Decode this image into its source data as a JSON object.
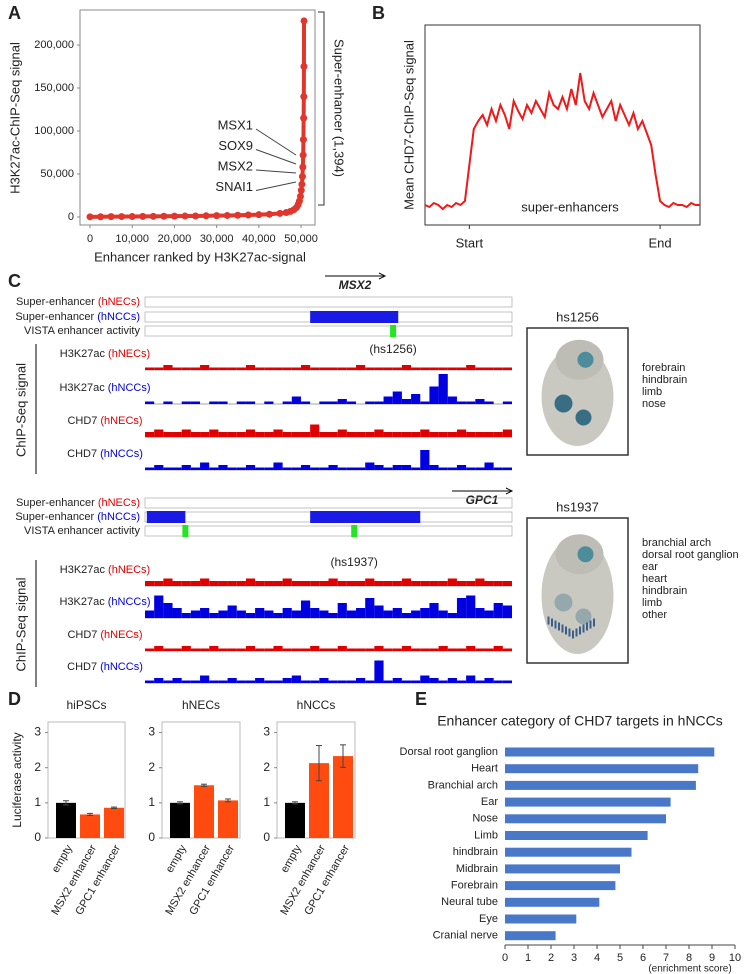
{
  "chart_data": [
    {
      "type": "line",
      "panel": "A",
      "markers": true,
      "color": "#e0362c",
      "xlabel": "Enhancer ranked by H3K27ac-signal",
      "ylabel": "H3K27ac-ChIP-Seq signal",
      "x": [
        0,
        2500,
        5000,
        7500,
        10000,
        12500,
        15000,
        17500,
        20000,
        22500,
        25000,
        27500,
        30000,
        32500,
        35000,
        37500,
        40000,
        42500,
        45000,
        46500,
        47500,
        48300,
        48900,
        49300,
        49600,
        49850,
        50050,
        50200,
        50320,
        50420,
        50500,
        50560,
        50610,
        50650,
        50680,
        50700
      ],
      "values": [
        200,
        300,
        400,
        500,
        600,
        700,
        800,
        900,
        1000,
        1100,
        1200,
        1400,
        1600,
        1800,
        2000,
        2300,
        2700,
        3200,
        4200,
        5200,
        6500,
        8500,
        11000,
        14500,
        18500,
        24000,
        31000,
        38000,
        47000,
        58000,
        72000,
        90000,
        115000,
        140000,
        175000,
        228000
      ],
      "xlim": [
        -2370,
        53300
      ],
      "xticks": [
        0,
        {
          "value": 10000,
          "label": "10,000"
        },
        {
          "value": 20000,
          "label": "20,000"
        },
        {
          "value": 30000,
          "label": "30,000"
        },
        {
          "value": 40000,
          "label": "40,000"
        },
        {
          "value": 50000,
          "label": "50,000"
        }
      ],
      "ylim": [
        -9300,
        240700
      ],
      "yticks": [
        0,
        {
          "value": 50000,
          "label": "50,000"
        },
        {
          "value": 100000,
          "label": "100,000"
        },
        {
          "value": 150000,
          "label": "150,000"
        },
        {
          "value": 200000,
          "label": "200,000"
        }
      ],
      "labels": [
        "MSX1",
        "SOX9",
        "MSX2",
        "SNAI1"
      ],
      "bracket_label": "Super-enhancer (1,394)"
    },
    {
      "type": "line",
      "panel": "B",
      "markers": false,
      "color": "#f01818",
      "ylabel": "Mean CHD7-ChIP-Seq signal",
      "annotation": "super-enhancers",
      "values": [
        10,
        9,
        11,
        10,
        8,
        10,
        9,
        11,
        10,
        12,
        30,
        48,
        52,
        55,
        50,
        58,
        52,
        60,
        55,
        48,
        62,
        57,
        53,
        60,
        56,
        62,
        58,
        54,
        66,
        60,
        58,
        64,
        58,
        68,
        60,
        76,
        62,
        58,
        66,
        60,
        54,
        58,
        62,
        52,
        60,
        55,
        50,
        56,
        48,
        52,
        46,
        40,
        25,
        12,
        10,
        9,
        11,
        10,
        10,
        9,
        11,
        10,
        10
      ],
      "xlim": [
        0,
        62
      ],
      "ylim": [
        0,
        100
      ],
      "xticks": [
        {
          "value": 10,
          "label": "Start"
        },
        {
          "value": 53,
          "label": "End"
        }
      ]
    },
    {
      "type": "bar",
      "panel": "D",
      "title": "hiPSCs",
      "ylabel": "Luciferase activity",
      "categories": [
        "empty",
        "MSX2 enhancer",
        "GPC1 enhancer"
      ],
      "values": [
        1.0,
        0.67,
        0.86
      ],
      "errors": [
        0.06,
        0.03,
        0.02
      ],
      "colors": [
        "#000000",
        "#ff4a10",
        "#ff4a10"
      ],
      "ylim": [
        0,
        3.3
      ],
      "yticks": [
        0,
        1,
        2,
        3
      ]
    },
    {
      "type": "bar",
      "title": "hNECs",
      "categories": [
        "empty",
        "MSX2 enhancer",
        "GPC1 enhancer"
      ],
      "values": [
        1.0,
        1.5,
        1.07
      ],
      "errors": [
        0.03,
        0.03,
        0.04
      ],
      "colors": [
        "#000000",
        "#ff4a10",
        "#ff4a10"
      ],
      "ylim": [
        0,
        3.3
      ],
      "yticks": [
        0,
        1,
        2,
        3
      ]
    },
    {
      "type": "bar",
      "title": "hNCCs",
      "categories": [
        "empty",
        "MSX2 enhancer",
        "GPC1 enhancer"
      ],
      "values": [
        1.0,
        2.13,
        2.33
      ],
      "errors": [
        0.03,
        0.5,
        0.32
      ],
      "colors": [
        "#000000",
        "#ff4a10",
        "#ff4a10"
      ],
      "ylim": [
        0,
        3.3
      ],
      "yticks": [
        0,
        1,
        2,
        3
      ]
    },
    {
      "type": "hbar",
      "panel": "E",
      "title": "Enhancer category of CHD7 targets in hNCCs",
      "xlabel": "(enrichment score)",
      "color": "#4a78c8",
      "categories": [
        "Dorsal root ganglion",
        "Heart",
        "Branchial arch",
        "Ear",
        "Nose",
        "Limb",
        "hindbrain",
        "Midbrain",
        "Forebrain",
        "Neural tube",
        "Eye",
        "Cranial nerve"
      ],
      "values": [
        9.1,
        8.4,
        8.3,
        7.2,
        7.0,
        6.2,
        5.5,
        5.0,
        4.8,
        4.1,
        3.1,
        2.2
      ],
      "xlim": [
        0,
        10
      ],
      "xticks": [
        0,
        1,
        2,
        3,
        4,
        5,
        6,
        7,
        8,
        9,
        10
      ]
    }
  ],
  "tracks": {
    "panel": "C",
    "axis_label": "ChIP-Seq signal",
    "blocks": [
      {
        "gene": "MSX2",
        "super_enhancers": [
          {
            "label": "Super-enhancer",
            "cell": "(hNECs)",
            "color": "#e00000",
            "regions": []
          },
          {
            "label": "Super-enhancer",
            "cell": "(hNCCs)",
            "color": "#0000e0",
            "regions": [
              [
                45,
                69
              ]
            ]
          }
        ],
        "vista": {
          "label": "VISTA enhancer activity",
          "positions": [
            67.6
          ],
          "names": [
            "(hs1256)"
          ]
        },
        "signals": [
          {
            "label": "H3K27ac",
            "cell": "(hNECs)",
            "color": "#e00000",
            "values": [
              1,
              1,
              2,
              1,
              1,
              1,
              2,
              1,
              1,
              1,
              1,
              2,
              1,
              1,
              1,
              1,
              1,
              2,
              1,
              1,
              1,
              1,
              1,
              2,
              1,
              1,
              1,
              1,
              2,
              1,
              1,
              1,
              1,
              1,
              1,
              2,
              1,
              1,
              1,
              1
            ]
          },
          {
            "label": "H3K27ac",
            "cell": "(hNCCs)",
            "color": "#0000e0",
            "values": [
              1,
              0,
              1,
              0,
              1,
              1,
              0,
              1,
              1,
              0,
              1,
              1,
              0,
              1,
              0,
              1,
              3,
              1,
              0,
              1,
              1,
              2,
              1,
              0,
              1,
              1,
              3,
              5,
              2,
              4,
              1,
              7,
              12,
              3,
              1,
              1,
              2,
              1,
              0,
              1
            ]
          },
          {
            "label": "CHD7",
            "cell": "(hNECs)",
            "color": "#e00000",
            "values": [
              2,
              3,
              2,
              2,
              3,
              2,
              2,
              3,
              2,
              2,
              2,
              3,
              2,
              2,
              3,
              2,
              2,
              2,
              5,
              2,
              2,
              3,
              2,
              2,
              2,
              3,
              2,
              2,
              2,
              2,
              3,
              2,
              2,
              2,
              3,
              2,
              2,
              2,
              2,
              3
            ]
          },
          {
            "label": "CHD7",
            "cell": "(hNCCs)",
            "color": "#0000e0",
            "values": [
              1,
              2,
              1,
              1,
              2,
              1,
              3,
              1,
              2,
              1,
              1,
              2,
              1,
              1,
              3,
              1,
              1,
              2,
              1,
              1,
              2,
              1,
              1,
              1,
              3,
              2,
              1,
              2,
              2,
              1,
              8,
              2,
              1,
              1,
              2,
              1,
              1,
              3,
              1,
              1
            ]
          }
        ],
        "embryo": {
          "name": "hs1256",
          "tissues": [
            "forebrain",
            "hindbrain",
            "limb",
            "nose"
          ]
        }
      },
      {
        "gene": "GPC1",
        "super_enhancers": [
          {
            "label": "Super-enhancer",
            "cell": "(hNECs)",
            "color": "#e00000",
            "regions": []
          },
          {
            "label": "Super-enhancer",
            "cell": "(hNCCs)",
            "color": "#0000e0",
            "regions": [
              [
                0.5,
                11
              ],
              [
                45,
                75
              ]
            ]
          }
        ],
        "vista": {
          "label": "VISTA enhancer activity",
          "positions": [
            11,
            57
          ],
          "names": [
            "(hs1937)"
          ]
        },
        "signals": [
          {
            "label": "H3K27ac",
            "cell": "(hNECs)",
            "color": "#e00000",
            "values": [
              2,
              2,
              3,
              2,
              2,
              2,
              3,
              2,
              2,
              2,
              2,
              3,
              2,
              2,
              2,
              3,
              2,
              2,
              2,
              2,
              3,
              2,
              2,
              2,
              3,
              2,
              2,
              2,
              3,
              2,
              2,
              2,
              2,
              3,
              2,
              2,
              3,
              2,
              2,
              2
            ]
          },
          {
            "label": "H3K27ac",
            "cell": "(hNCCs)",
            "color": "#0000e0",
            "values": [
              3,
              9,
              6,
              4,
              2,
              3,
              4,
              2,
              3,
              5,
              3,
              2,
              4,
              3,
              2,
              4,
              3,
              7,
              4,
              3,
              2,
              6,
              3,
              4,
              8,
              5,
              3,
              4,
              2,
              3,
              4,
              6,
              3,
              2,
              8,
              9,
              4,
              3,
              6,
              5
            ]
          },
          {
            "label": "CHD7",
            "cell": "(hNECs)",
            "color": "#e00000",
            "values": [
              1,
              2,
              1,
              1,
              2,
              1,
              1,
              2,
              1,
              1,
              1,
              2,
              1,
              1,
              2,
              1,
              1,
              1,
              2,
              1,
              1,
              2,
              1,
              1,
              1,
              2,
              1,
              1,
              2,
              1,
              1,
              1,
              2,
              1,
              1,
              2,
              1,
              1,
              2,
              1
            ]
          },
          {
            "label": "CHD7",
            "cell": "(hNCCs)",
            "color": "#0000e0",
            "values": [
              1,
              2,
              1,
              2,
              1,
              1,
              3,
              1,
              1,
              2,
              1,
              1,
              2,
              1,
              1,
              2,
              3,
              1,
              1,
              2,
              1,
              1,
              1,
              2,
              1,
              9,
              1,
              2,
              1,
              1,
              3,
              2,
              1,
              2,
              1,
              3,
              1,
              2,
              1,
              1
            ]
          }
        ],
        "embryo": {
          "name": "hs1937",
          "tissues": [
            "branchial arch",
            "dorsal root ganglion",
            "ear",
            "heart",
            "hindbrain",
            "limb",
            "other"
          ]
        }
      }
    ]
  }
}
